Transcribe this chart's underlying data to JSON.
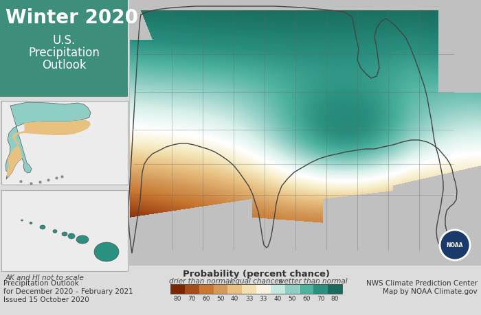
{
  "title": "Winter 2020",
  "subtitle_line1": "U.S.",
  "subtitle_line2": "Precipitation",
  "subtitle_line3": "Outlook",
  "bg_color": "#dcdcdc",
  "map_ocean_color": "#c8c8c8",
  "map_us_base": "#f5f5f5",
  "colorbar_title": "Probability (percent chance)",
  "colorbar_label1": "drier than normal",
  "colorbar_label2": "equal chances",
  "colorbar_label3": "wetter than normal",
  "colorbar_ticks": [
    "80",
    "70",
    "60",
    "50",
    "40",
    "33",
    "33",
    "40",
    "50",
    "60",
    "70",
    "80"
  ],
  "colorbar_colors": [
    "#7B2600",
    "#A64B1A",
    "#C87830",
    "#D49A5A",
    "#E8C080",
    "#F2E0B0",
    "#F8F2E0",
    "#C5E8DF",
    "#8FCEC4",
    "#4FB3A0",
    "#2A9080",
    "#1A6B5E"
  ],
  "bottom_left_text1": "Precipitation Outlook",
  "bottom_left_text2": "for December 2020 – February 2021",
  "bottom_left_text3": "Issued 15 October 2020",
  "bottom_right_text1": "NWS Climate Prediction Center",
  "bottom_right_text2": "Map by NOAA Climate.gov",
  "ak_hi_text": "AK and HI not to scale",
  "title_fontsize": 20,
  "subtitle_fontsize": 12,
  "title_bg_color": "#3a8a78",
  "noaa_logo_color": "#1a3a6b",
  "teal_80": "#1A6B5E",
  "teal_70": "#2A9080",
  "teal_60": "#4FB3A0",
  "teal_50": "#8FCEC4",
  "teal_40": "#C5E8DF",
  "brown_80": "#7B2600",
  "brown_70": "#A64B1A",
  "brown_60": "#C87830",
  "brown_50": "#D49A5A",
  "brown_40": "#E8C080",
  "equal": "#F8F8F8",
  "state_border_color": "#888888",
  "us_border_color": "#555555"
}
